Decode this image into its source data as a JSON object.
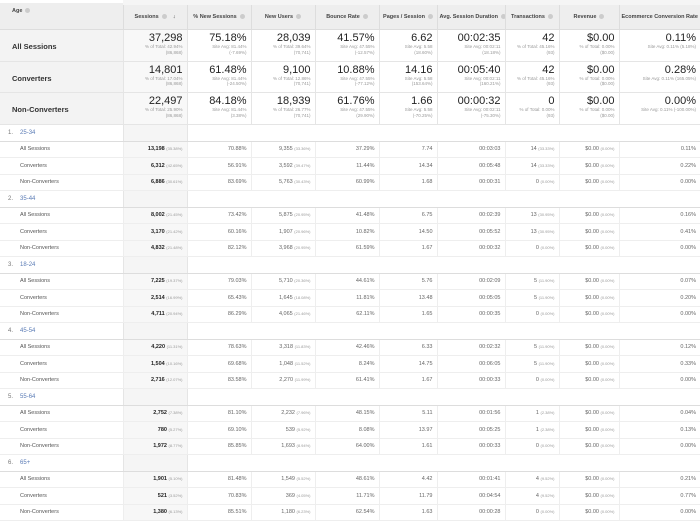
{
  "header": {
    "dimension": "Age",
    "columns": [
      "Sessions",
      "% New Sessions",
      "New Users",
      "Bounce Rate",
      "Pages / Session",
      "Avg. Session Duration",
      "Transactions",
      "Revenue",
      "Ecommerce Conversion Rate"
    ]
  },
  "summary": [
    {
      "label": "All Sessions",
      "cells": [
        [
          "37,298",
          "% of Total: 42.94%",
          "(86,868)"
        ],
        [
          "75.18%",
          "Site Avg: 81.44%",
          "(-7.69%)"
        ],
        [
          "28,039",
          "% of Total: 39.64%",
          "(70,741)"
        ],
        [
          "41.57%",
          "Site Avg: 47.55%",
          "(-12.57%)"
        ],
        [
          "6.62",
          "Site Avg: 5.58",
          "(18.60%)"
        ],
        [
          "00:02:35",
          "Site Avg: 00:02:11",
          "(18.18%)"
        ],
        [
          "42",
          "% of Total: 45.16%",
          "(93)"
        ],
        [
          "$0.00",
          "% of Total: 0.00%",
          "($0.00)"
        ],
        [
          "0.11%",
          "Site Avg: 0.11% (5.18%)",
          ""
        ]
      ]
    },
    {
      "label": "Converters",
      "cells": [
        [
          "14,801",
          "% of Total: 17.04%",
          "(86,868)"
        ],
        [
          "61.48%",
          "Site Avg: 81.44%",
          "(-24.50%)"
        ],
        [
          "9,100",
          "% of Total: 12.86%",
          "(70,741)"
        ],
        [
          "10.88%",
          "Site Avg: 47.55%",
          "(-77.12%)"
        ],
        [
          "14.16",
          "Site Avg: 5.58",
          "(153.64%)"
        ],
        [
          "00:05:40",
          "Site Avg: 00:02:11",
          "(160.21%)"
        ],
        [
          "42",
          "% of Total: 45.16%",
          "(93)"
        ],
        [
          "$0.00",
          "% of Total: 0.00%",
          "($0.00)"
        ],
        [
          "0.28%",
          "Site Avg: 0.11% (165.05%)",
          ""
        ]
      ]
    },
    {
      "label": "Non-Converters",
      "cells": [
        [
          "22,497",
          "% of Total: 25.90%",
          "(86,868)"
        ],
        [
          "84.18%",
          "Site Avg: 81.44%",
          "(3.38%)"
        ],
        [
          "18,939",
          "% of Total: 26.77%",
          "(70,741)"
        ],
        [
          "61.76%",
          "Site Avg: 47.55%",
          "(29.90%)"
        ],
        [
          "1.66",
          "Site Avg: 5.58",
          "(-70.25%)"
        ],
        [
          "00:00:32",
          "Site Avg: 00:02:11",
          "(-75.30%)"
        ],
        [
          "0",
          "% of Total: 0.00%",
          "(93)"
        ],
        [
          "$0.00",
          "% of Total: 0.00%",
          "($0.00)"
        ],
        [
          "0.00%",
          "Site Avg: 0.11% (-100.00%)",
          ""
        ]
      ]
    }
  ],
  "groups": [
    {
      "index": "1.",
      "name": "25-34",
      "rows": [
        [
          "All Sessions",
          "13,198",
          "(35.38%)",
          "70.88%",
          "9,355",
          "(33.36%)",
          "37.29%",
          "7.74",
          "00:03:03",
          "14",
          "(33.33%)",
          "$0.00",
          "(0.00%)",
          "0.11%"
        ],
        [
          "Converters",
          "6,312",
          "(42.65%)",
          "56.91%",
          "3,592",
          "(39.47%)",
          "11.44%",
          "14.34",
          "00:05:48",
          "14",
          "(33.33%)",
          "$0.00",
          "(0.00%)",
          "0.22%"
        ],
        [
          "Non-Converters",
          "6,886",
          "(30.61%)",
          "83.69%",
          "5,763",
          "(30.43%)",
          "60.99%",
          "1.68",
          "00:00:31",
          "0",
          "(0.00%)",
          "$0.00",
          "(0.00%)",
          "0.00%"
        ]
      ]
    },
    {
      "index": "2.",
      "name": "35-44",
      "rows": [
        [
          "All Sessions",
          "8,002",
          "(21.45%)",
          "73.42%",
          "5,875",
          "(20.95%)",
          "41.48%",
          "6.75",
          "00:02:39",
          "13",
          "(30.95%)",
          "$0.00",
          "(0.00%)",
          "0.16%"
        ],
        [
          "Converters",
          "3,170",
          "(21.42%)",
          "60.16%",
          "1,907",
          "(20.96%)",
          "10.82%",
          "14.50",
          "00:05:52",
          "13",
          "(30.95%)",
          "$0.00",
          "(0.00%)",
          "0.41%"
        ],
        [
          "Non-Converters",
          "4,832",
          "(21.48%)",
          "82.12%",
          "3,968",
          "(20.95%)",
          "61.59%",
          "1.67",
          "00:00:32",
          "0",
          "(0.00%)",
          "$0.00",
          "(0.00%)",
          "0.00%"
        ]
      ]
    },
    {
      "index": "3.",
      "name": "18-24",
      "rows": [
        [
          "All Sessions",
          "7,225",
          "(19.37%)",
          "79.03%",
          "5,710",
          "(20.36%)",
          "44.61%",
          "5.76",
          "00:02:09",
          "5",
          "(11.90%)",
          "$0.00",
          "(0.00%)",
          "0.07%"
        ],
        [
          "Converters",
          "2,514",
          "(16.99%)",
          "65.43%",
          "1,645",
          "(18.08%)",
          "11.81%",
          "13.48",
          "00:05:05",
          "5",
          "(11.90%)",
          "$0.00",
          "(0.00%)",
          "0.20%"
        ],
        [
          "Non-Converters",
          "4,711",
          "(20.94%)",
          "86.29%",
          "4,065",
          "(21.46%)",
          "62.11%",
          "1.65",
          "00:00:35",
          "0",
          "(0.00%)",
          "$0.00",
          "(0.00%)",
          "0.00%"
        ]
      ]
    },
    {
      "index": "4.",
      "name": "45-54",
      "rows": [
        [
          "All Sessions",
          "4,220",
          "(11.31%)",
          "78.63%",
          "3,318",
          "(11.83%)",
          "42.46%",
          "6.33",
          "00:02:32",
          "5",
          "(11.90%)",
          "$0.00",
          "(0.00%)",
          "0.12%"
        ],
        [
          "Converters",
          "1,504",
          "(10.16%)",
          "69.68%",
          "1,048",
          "(11.52%)",
          "8.24%",
          "14.75",
          "00:06:05",
          "5",
          "(11.90%)",
          "$0.00",
          "(0.00%)",
          "0.33%"
        ],
        [
          "Non-Converters",
          "2,716",
          "(12.07%)",
          "83.58%",
          "2,270",
          "(11.99%)",
          "61.41%",
          "1.67",
          "00:00:33",
          "0",
          "(0.00%)",
          "$0.00",
          "(0.00%)",
          "0.00%"
        ]
      ]
    },
    {
      "index": "5.",
      "name": "55-64",
      "rows": [
        [
          "All Sessions",
          "2,752",
          "(7.38%)",
          "81.10%",
          "2,232",
          "(7.96%)",
          "48.15%",
          "5.11",
          "00:01:56",
          "1",
          "(2.38%)",
          "$0.00",
          "(0.00%)",
          "0.04%"
        ],
        [
          "Converters",
          "780",
          "(5.27%)",
          "69.10%",
          "539",
          "(5.92%)",
          "8.08%",
          "13.97",
          "00:05:25",
          "1",
          "(2.38%)",
          "$0.00",
          "(0.00%)",
          "0.13%"
        ],
        [
          "Non-Converters",
          "1,972",
          "(8.77%)",
          "85.85%",
          "1,693",
          "(8.94%)",
          "64.00%",
          "1.61",
          "00:00:33",
          "0",
          "(0.00%)",
          "$0.00",
          "(0.00%)",
          "0.00%"
        ]
      ]
    },
    {
      "index": "6.",
      "name": "65+",
      "rows": [
        [
          "All Sessions",
          "1,901",
          "(5.10%)",
          "81.48%",
          "1,549",
          "(5.52%)",
          "48.61%",
          "4.42",
          "00:01:41",
          "4",
          "(9.52%)",
          "$0.00",
          "(0.00%)",
          "0.21%"
        ],
        [
          "Converters",
          "521",
          "(3.52%)",
          "70.83%",
          "369",
          "(4.05%)",
          "11.71%",
          "11.79",
          "00:04:54",
          "4",
          "(9.52%)",
          "$0.00",
          "(0.00%)",
          "0.77%"
        ],
        [
          "Non-Converters",
          "1,380",
          "(6.13%)",
          "85.51%",
          "1,180",
          "(6.23%)",
          "62.54%",
          "1.63",
          "00:00:28",
          "0",
          "(0.00%)",
          "$0.00",
          "(0.00%)",
          "0.00%"
        ]
      ]
    }
  ],
  "sort": {
    "column": "Sessions",
    "direction": "descending",
    "icon": "arrow-down-icon"
  }
}
